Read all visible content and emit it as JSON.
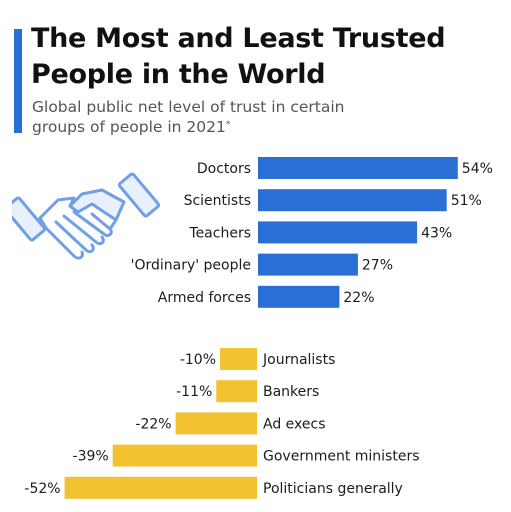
{
  "title_line1": "The Most and Least Trusted",
  "title_line2": "People in the World",
  "subtitle_line1": "Global public net level of trust in certain",
  "subtitle_line2": "groups of people in 2021",
  "subtitle_mark": "*",
  "colors": {
    "accent": "#2b6fd6",
    "positive": "#2b6fd6",
    "negative": "#f2c230",
    "icon": "#6f9fe6"
  },
  "icon": "handshake-icon",
  "chart_data": [
    {
      "type": "bar",
      "orientation": "horizontal",
      "categories": [
        "Doctors",
        "Scientists",
        "Teachers",
        "'Ordinary' people",
        "Armed forces"
      ],
      "values": [
        54,
        51,
        43,
        27,
        22
      ],
      "value_suffix": "%"
    },
    {
      "type": "bar",
      "orientation": "horizontal",
      "categories": [
        "Journalists",
        "Bankers",
        "Ad execs",
        "Government ministers",
        "Politicians generally"
      ],
      "values": [
        -10,
        -11,
        -22,
        -39,
        -52
      ],
      "value_suffix": "%"
    }
  ]
}
